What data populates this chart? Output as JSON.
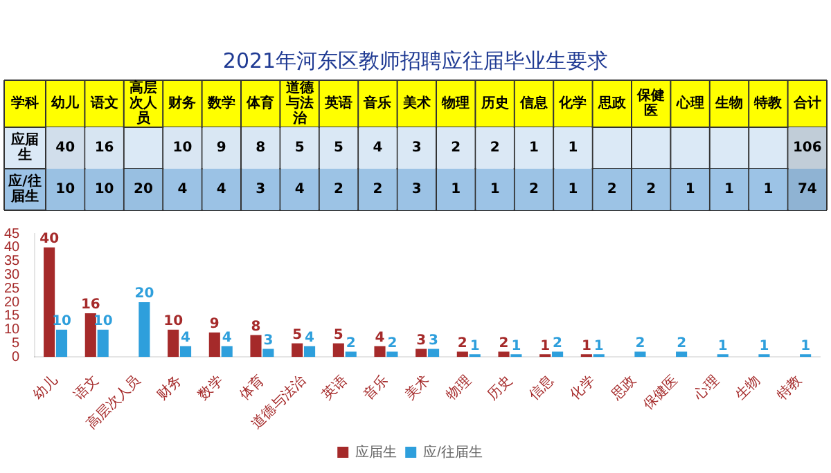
{
  "chart_data": [
    {
      "type": "heatmap",
      "title": "2021年河东区教师招聘应往届毕业生要求",
      "ylabel": "学科",
      "categories": [
        "幼儿",
        "语文",
        "高层次人员",
        "财务",
        "数学",
        "体育",
        "道德与法治",
        "英语",
        "音乐",
        "美术",
        "物理",
        "历史",
        "信息",
        "化学",
        "思政",
        "保健医",
        "心理",
        "生物",
        "特教",
        "合计"
      ],
      "y_categories": [
        "应届生",
        "应/往届生"
      ],
      "cells": [
        [
          40,
          16,
          null,
          10,
          9,
          8,
          5,
          5,
          4,
          3,
          2,
          2,
          1,
          1,
          null,
          null,
          null,
          null,
          null,
          106
        ],
        [
          10,
          10,
          20,
          4,
          4,
          3,
          4,
          2,
          2,
          3,
          1,
          1,
          2,
          1,
          2,
          2,
          1,
          1,
          1,
          74
        ]
      ],
      "cell_labels": [
        [
          "40",
          "16",
          null,
          "10",
          "9",
          "8",
          "5",
          "5",
          "4",
          "3",
          "2",
          "2",
          "1",
          "1",
          null,
          null,
          null,
          null,
          null,
          "106"
        ],
        [
          "10",
          "10",
          "20",
          "4",
          "4",
          "3",
          "4",
          "2",
          "2",
          "3",
          "1",
          "1",
          "2",
          "1",
          "2",
          "2",
          "1",
          "1",
          "1",
          "74"
        ]
      ]
    },
    {
      "type": "bar",
      "categories": [
        "幼儿",
        "语文",
        "高层次人员",
        "财务",
        "数学",
        "体育",
        "道德与法治",
        "英语",
        "音乐",
        "美术",
        "物理",
        "历史",
        "信息",
        "化学",
        "思政",
        "保健医",
        "心理",
        "生物",
        "特教"
      ],
      "series": [
        {
          "name": "应届生",
          "color": "#a52a2a",
          "values": [
            40,
            16,
            null,
            10,
            9,
            8,
            5,
            5,
            4,
            3,
            2,
            2,
            1,
            1,
            null,
            null,
            null,
            null,
            null
          ]
        },
        {
          "name": "应/往届生",
          "color": "#2e9fdc",
          "values": [
            10,
            10,
            20,
            4,
            4,
            3,
            4,
            2,
            2,
            3,
            1,
            1,
            2,
            1,
            2,
            2,
            1,
            1,
            1
          ]
        }
      ],
      "ylim": [
        0,
        45
      ],
      "yticks": [
        0,
        5,
        10,
        15,
        20,
        25,
        30,
        35,
        40,
        45
      ],
      "grid": false,
      "legend": "bottom",
      "data_labels": true
    }
  ]
}
